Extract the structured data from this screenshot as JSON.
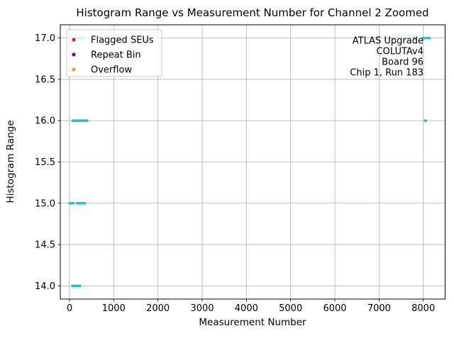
{
  "figure": {
    "background": "#ffffff"
  },
  "chart_data": {
    "type": "scatter",
    "title": "Histogram Range vs Measurement Number for Channel 2 Zoomed",
    "xlabel": "Measurement Number",
    "ylabel": "Histogram Range",
    "xlim": [
      -208,
      8494
    ],
    "ylim": [
      13.84,
      17.16
    ],
    "xticks": [
      0,
      1000,
      2000,
      3000,
      4000,
      5000,
      6000,
      7000,
      8000
    ],
    "yticks": [
      14.0,
      14.5,
      15.0,
      15.5,
      16.0,
      16.5,
      17.0
    ],
    "grid": true,
    "grid_color": "#b0b0b0",
    "point_color": "#25c2bd",
    "series": [
      {
        "name": "Histogram Range",
        "color": "#25c2bd",
        "marker": "circle",
        "points": [
          [
            130,
            17
          ],
          [
            160,
            17
          ],
          [
            190,
            17
          ],
          [
            215,
            17
          ],
          [
            245,
            17
          ],
          [
            270,
            17
          ],
          [
            300,
            17
          ],
          [
            330,
            17
          ],
          [
            7800,
            17
          ],
          [
            8000,
            17
          ],
          [
            8030,
            17
          ],
          [
            8090,
            17
          ],
          [
            8140,
            17
          ],
          [
            70,
            16
          ],
          [
            100,
            16
          ],
          [
            130,
            16
          ],
          [
            160,
            16
          ],
          [
            190,
            16
          ],
          [
            220,
            16
          ],
          [
            250,
            16
          ],
          [
            280,
            16
          ],
          [
            310,
            16
          ],
          [
            340,
            16
          ],
          [
            370,
            16
          ],
          [
            400,
            16
          ],
          [
            8040,
            16
          ],
          [
            8060,
            16
          ],
          [
            0,
            15
          ],
          [
            30,
            15
          ],
          [
            60,
            15
          ],
          [
            90,
            15
          ],
          [
            170,
            15
          ],
          [
            200,
            15
          ],
          [
            230,
            15
          ],
          [
            260,
            15
          ],
          [
            290,
            15
          ],
          [
            320,
            15
          ],
          [
            350,
            15
          ],
          [
            70,
            14
          ],
          [
            100,
            14
          ],
          [
            130,
            14
          ],
          [
            170,
            14
          ],
          [
            200,
            14
          ],
          [
            240,
            14
          ]
        ]
      }
    ],
    "legend": {
      "position": "upper-left",
      "entries": [
        {
          "label": "Flagged SEUs",
          "color": "#d62728"
        },
        {
          "label": "Repeat Bin",
          "color": "#800080"
        },
        {
          "label": "Overflow",
          "color": "#ff8c1a"
        }
      ]
    },
    "annotation": {
      "align": "right",
      "lines": [
        "ATLAS Upgrade",
        "COLUTAv4",
        "Board 96",
        "Chip 1, Run 183"
      ]
    }
  }
}
